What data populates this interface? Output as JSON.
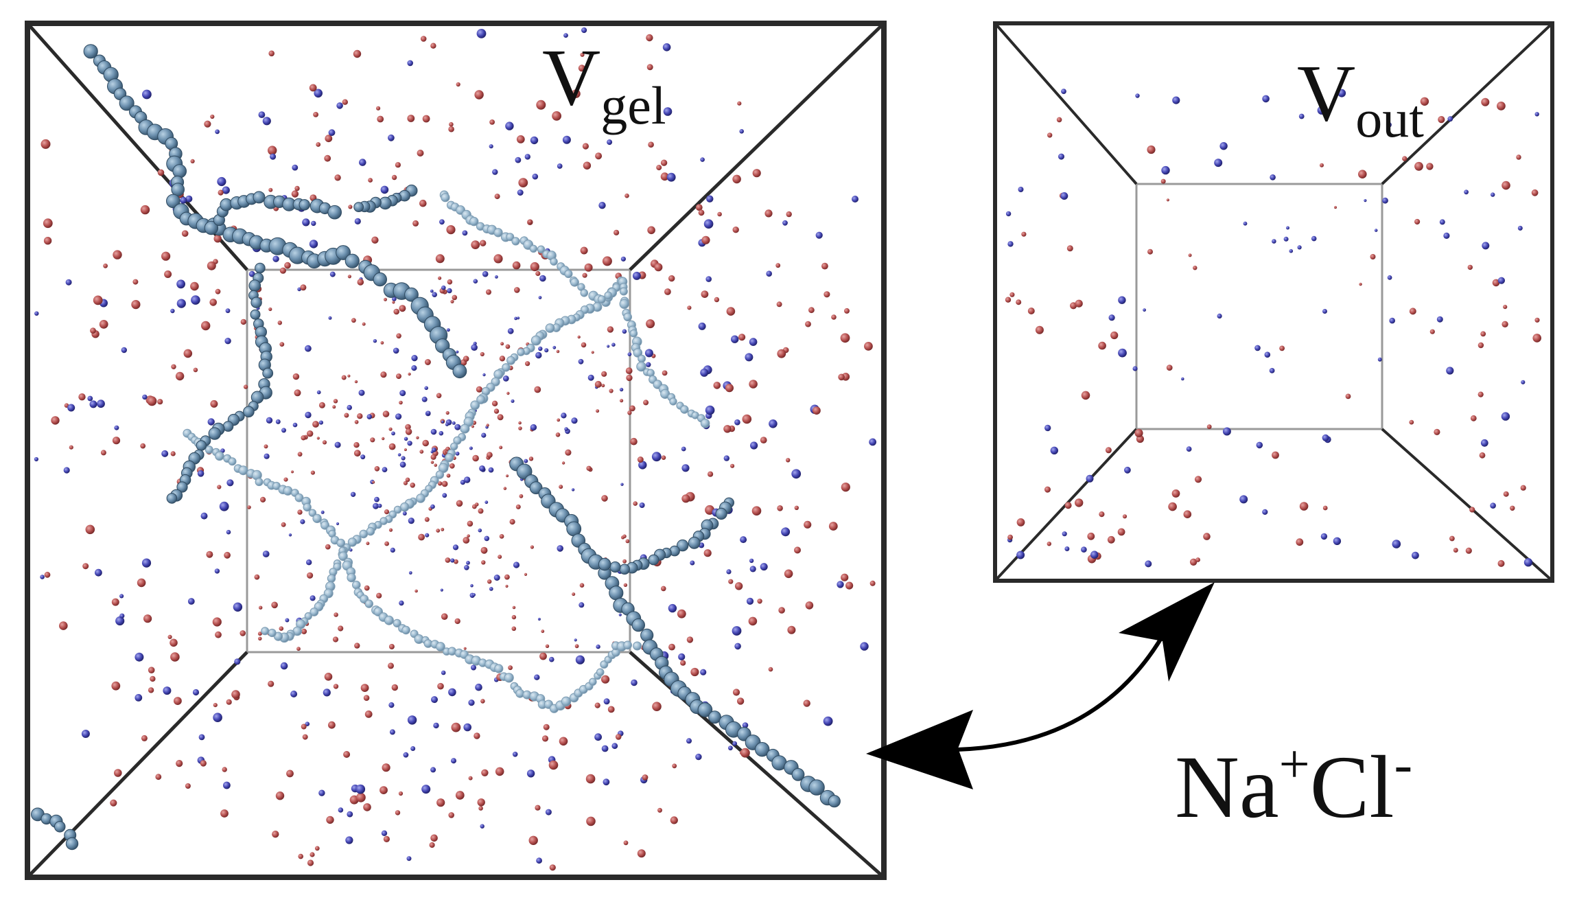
{
  "labels": {
    "gel": {
      "main": "V",
      "sub": "gel"
    },
    "out": {
      "main": "V",
      "sub": "out"
    },
    "salt": {
      "na": "Na",
      "na_sup": "+",
      "cl": "Cl",
      "cl_sup": "-"
    }
  },
  "colors": {
    "frame": "#2a2a2a",
    "inner_frame": "#9a9a9a",
    "chain": "#5f87a8",
    "chain_light": "#8fb0c7",
    "na_ion": "#b5504f",
    "cl_ion": "#3d3fa8",
    "arrow": "#000000"
  },
  "icons": {
    "exchange_arrow": "double-headed-curved-arrow-icon"
  }
}
